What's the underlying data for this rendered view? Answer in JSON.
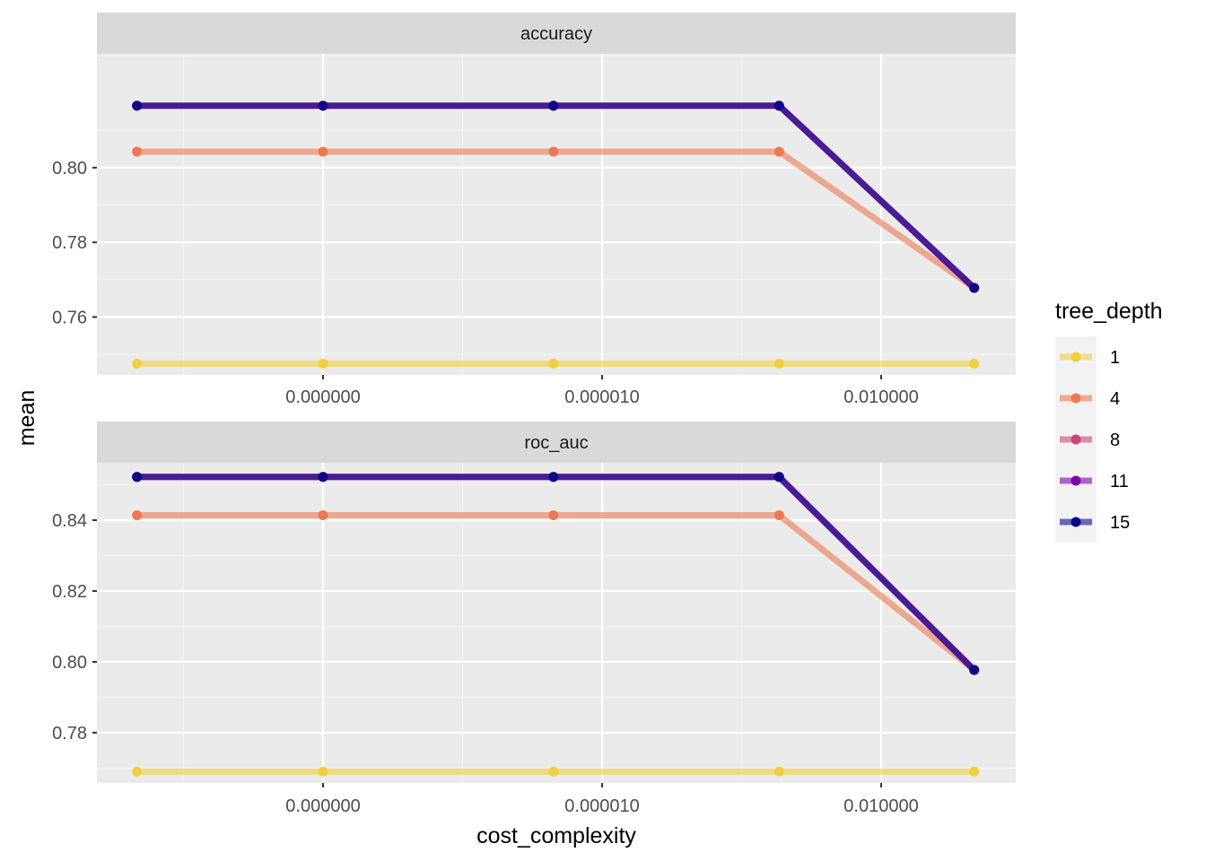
{
  "chart_data": {
    "type": "line",
    "xlabel": "cost_complexity",
    "ylabel": "mean",
    "x_scale": "log10",
    "x_tick_labels": [
      "0.000000",
      "0.000010",
      "0.010000"
    ],
    "x_tick_values": [
      1e-08,
      1e-05,
      0.01
    ],
    "x": [
      1e-10,
      1e-08,
      3e-06,
      0.0008,
      0.1
    ],
    "legend": {
      "title": "tree_depth",
      "position": "right",
      "entries": [
        {
          "label": "1",
          "color": "#F0D040"
        },
        {
          "label": "4",
          "color": "#ED7953"
        },
        {
          "label": "8",
          "color": "#CC4778"
        },
        {
          "label": "11",
          "color": "#7E03A8"
        },
        {
          "label": "15",
          "color": "#0D0887"
        }
      ]
    },
    "panels": [
      {
        "strip": "accuracy",
        "ylim": [
          0.7445,
          0.8305
        ],
        "y_ticks": [
          0.76,
          0.78,
          0.8
        ],
        "y_tick_labels": [
          "0.76",
          "0.78",
          "0.80"
        ],
        "series": [
          {
            "name": "1",
            "values": [
              0.7475,
              0.7475,
              0.7475,
              0.7475,
              0.7475
            ]
          },
          {
            "name": "4",
            "values": [
              0.8043,
              0.8043,
              0.8043,
              0.8043,
              0.7678
            ]
          },
          {
            "name": "8",
            "values": [
              0.8166,
              0.8166,
              0.8166,
              0.8166,
              0.7678
            ]
          },
          {
            "name": "11",
            "values": [
              0.8166,
              0.8166,
              0.8166,
              0.8166,
              0.7678
            ]
          },
          {
            "name": "15",
            "values": [
              0.8166,
              0.8166,
              0.8166,
              0.8166,
              0.7678
            ]
          }
        ]
      },
      {
        "strip": "roc_auc",
        "ylim": [
          0.7658,
          0.8562
        ],
        "y_ticks": [
          0.78,
          0.8,
          0.82,
          0.84
        ],
        "y_tick_labels": [
          "0.78",
          "0.80",
          "0.82",
          "0.84"
        ],
        "series": [
          {
            "name": "1",
            "values": [
              0.769,
              0.769,
              0.769,
              0.769,
              0.769
            ]
          },
          {
            "name": "4",
            "values": [
              0.8414,
              0.8414,
              0.8414,
              0.8414,
              0.7977
            ]
          },
          {
            "name": "8",
            "values": [
              0.8522,
              0.8522,
              0.8522,
              0.8522,
              0.7977
            ]
          },
          {
            "name": "11",
            "values": [
              0.8522,
              0.8522,
              0.8522,
              0.8522,
              0.7977
            ]
          },
          {
            "name": "15",
            "values": [
              0.8522,
              0.8522,
              0.8522,
              0.8522,
              0.7977
            ]
          }
        ]
      }
    ],
    "grid": true
  }
}
